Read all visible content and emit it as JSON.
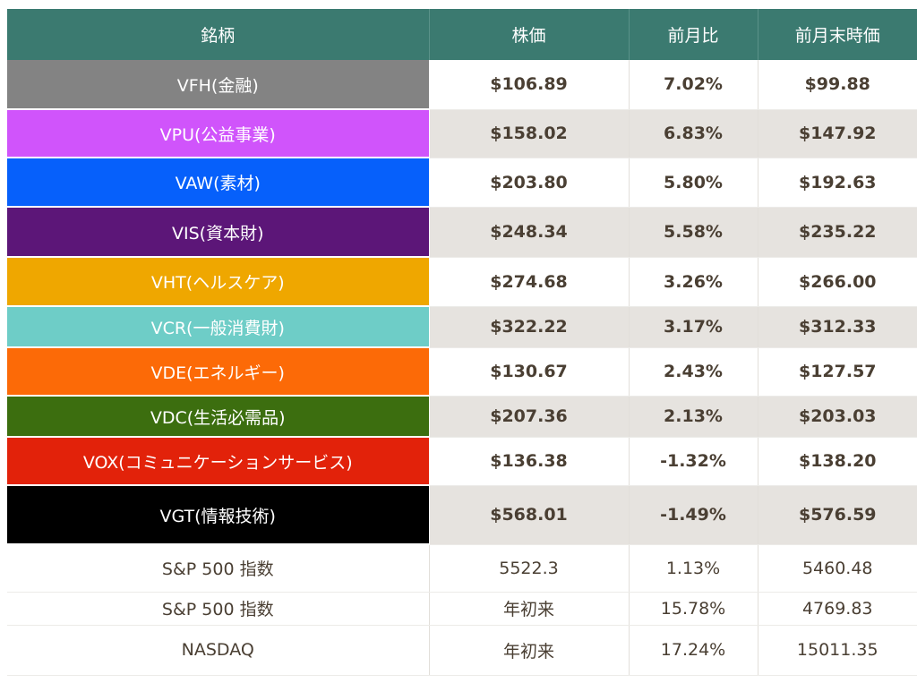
{
  "header": {
    "col_name": "銘柄",
    "col_price": "株価",
    "col_change": "前月比",
    "col_prev": "前月末時価"
  },
  "etfs": [
    {
      "name": "VFH(金融)",
      "price": "$106.89",
      "change": "7.02%",
      "prev": "$99.88",
      "color": "#838383"
    },
    {
      "name": "VPU(公益事業)",
      "price": "$158.02",
      "change": "6.83%",
      "prev": "$147.92",
      "color": "#d054fb"
    },
    {
      "name": "VAW(素材)",
      "price": "$203.80",
      "change": "5.80%",
      "prev": "$192.63",
      "color": "#0660fb"
    },
    {
      "name": "VIS(資本財)",
      "price": "$248.34",
      "change": "5.58%",
      "prev": "$235.22",
      "color": "#5c1678"
    },
    {
      "name": "VHT(ヘルスケア)",
      "price": "$274.68",
      "change": "3.26%",
      "prev": "$266.00",
      "color": "#efa700"
    },
    {
      "name": "VCR(一般消費財)",
      "price": "$322.22",
      "change": "3.17%",
      "prev": "$312.33",
      "color": "#6ecdc7"
    },
    {
      "name": "VDE(エネルギー)",
      "price": "$130.67",
      "change": "2.43%",
      "prev": "$127.57",
      "color": "#fc6a07"
    },
    {
      "name": "VDC(生活必需品)",
      "price": "$207.36",
      "change": "2.13%",
      "prev": "$203.03",
      "color": "#3c6e0f"
    },
    {
      "name": "VOX(コミュニケーションサービス)",
      "price": "$136.38",
      "change": "-1.32%",
      "prev": "$138.20",
      "color": "#e2220a"
    },
    {
      "name": "VGT(情報技術)",
      "price": "$568.01",
      "change": "-1.49%",
      "prev": "$576.59",
      "color": "#000000"
    }
  ],
  "indices": [
    {
      "name": "S&P 500 指数",
      "price": "5522.3",
      "change": "1.13%",
      "prev": "5460.48"
    },
    {
      "name": "S&P 500 指数",
      "price": "年初来",
      "change": "15.78%",
      "prev": "4769.83"
    },
    {
      "name": "NASDAQ",
      "price": "年初来",
      "change": "17.24%",
      "prev": "15011.35"
    }
  ]
}
